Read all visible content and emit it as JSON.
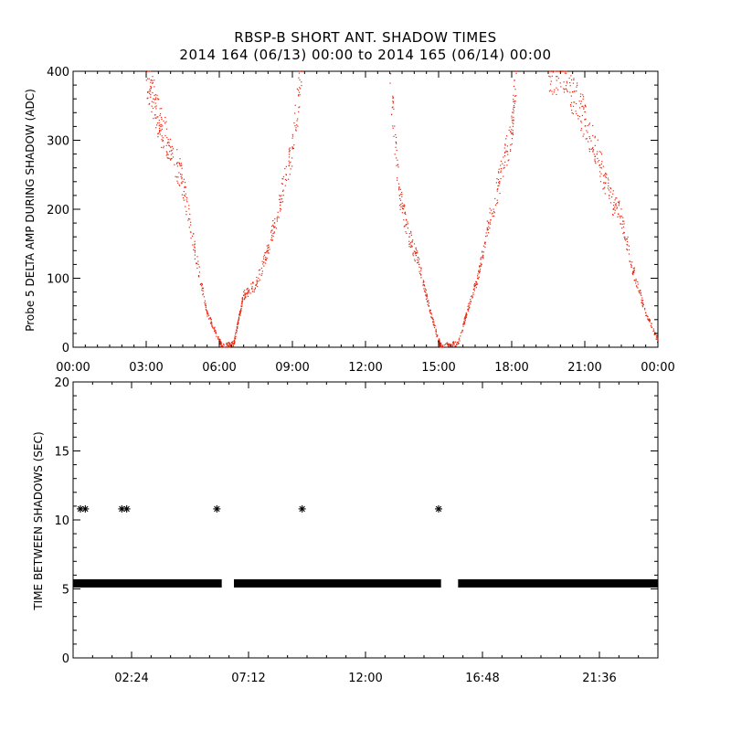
{
  "title": "RBSP-B SHORT ANT. SHADOW TIMES",
  "subtitle": "2014 164 (06/13) 00:00 to 2014 165 (06/14) 00:00",
  "colors": {
    "top_points": "#e8250f",
    "bottom_points": "#000000",
    "axes": "#000000"
  },
  "chart_data": [
    {
      "type": "scatter",
      "title": "",
      "xlabel": "",
      "ylabel": "Probe 5 DELTA AMP DURING SHADOW (ADC)",
      "xlim": [
        0,
        24
      ],
      "ylim": [
        0,
        400
      ],
      "x_ticks": [
        0,
        3,
        6,
        9,
        12,
        15,
        18,
        21,
        24
      ],
      "x_tick_labels": [
        "00:00",
        "03:00",
        "06:00",
        "09:00",
        "12:00",
        "15:00",
        "18:00",
        "21:00",
        "00:00"
      ],
      "y_ticks": [
        0,
        100,
        200,
        300,
        400
      ],
      "y_tick_labels": [
        "0",
        "100",
        "200",
        "300",
        "400"
      ],
      "grid": false,
      "marker": "dot",
      "series": [
        {
          "color": "#e8250f",
          "x": [
            3.0,
            3.3,
            3.6,
            4.0,
            4.5,
            5.0,
            5.5,
            6.0,
            6.1,
            6.6,
            6.8,
            7.0,
            7.5,
            8.0,
            8.5,
            9.0,
            9.4,
            13.0,
            13.4,
            13.8,
            14.2,
            14.6,
            15.0,
            15.1,
            15.8,
            16.2,
            16.6,
            17.0,
            17.5,
            18.0,
            18.2,
            19.5,
            20.0,
            20.5,
            21.0,
            21.5,
            22.0,
            22.5,
            23.0,
            23.5,
            24.0
          ],
          "y": [
            400,
            360,
            320,
            290,
            240,
            140,
            50,
            10,
            2,
            5,
            40,
            75,
            90,
            140,
            210,
            290,
            400,
            400,
            220,
            160,
            120,
            60,
            10,
            2,
            5,
            55,
            100,
            170,
            240,
            310,
            400,
            400,
            400,
            370,
            330,
            280,
            220,
            190,
            110,
            50,
            10
          ]
        }
      ]
    },
    {
      "type": "scatter",
      "title": "",
      "xlabel": "",
      "ylabel": "TIME BETWEEN SHADOWS (SEC)",
      "xlim": [
        0,
        24
      ],
      "ylim": [
        0,
        20
      ],
      "x_ticks": [
        2.4,
        7.2,
        12.0,
        16.8,
        21.6
      ],
      "x_tick_labels": [
        "02:24",
        "07:12",
        "12:00",
        "16:48",
        "21:36"
      ],
      "y_ticks": [
        0,
        5,
        10,
        15,
        20
      ],
      "y_tick_labels": [
        "0",
        "5",
        "10",
        "15",
        "20"
      ],
      "grid": false,
      "marker": "asterisk",
      "series": [
        {
          "color": "#000000",
          "segments_y": 5.4,
          "segments_x": [
            [
              0.0,
              6.1
            ],
            [
              6.6,
              15.1
            ],
            [
              15.8,
              24.0
            ]
          ],
          "x": [
            0.3,
            0.5,
            2.0,
            2.2,
            5.9,
            9.4,
            15.0
          ],
          "y": [
            10.8,
            10.8,
            10.8,
            10.8,
            10.8,
            10.8,
            10.8
          ]
        }
      ]
    }
  ]
}
